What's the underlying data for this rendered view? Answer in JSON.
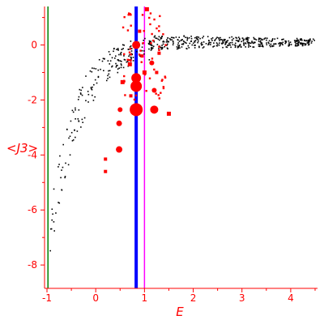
{
  "chart_data": {
    "type": "scatter",
    "xlabel": "E",
    "ylabel": "<J3>",
    "xlim": [
      -1.05,
      4.55
    ],
    "ylim": [
      -8.85,
      1.4
    ],
    "xticks": [
      "-1",
      "0",
      "1",
      "2",
      "3",
      "4"
    ],
    "yticks": [
      "0",
      "-2",
      "-4",
      "-6",
      "-8"
    ],
    "colors": {
      "axis": "#ff0000",
      "background_points": "#000000",
      "highlight_points": "#ff0000",
      "line_green": "#008000",
      "line_blue": "#0000ff",
      "line_magenta": "#ff00ff"
    },
    "vlines": [
      {
        "x": -0.98,
        "color": "#008000"
      },
      {
        "x": 0.83,
        "color": "#0000ff"
      },
      {
        "x": 1.0,
        "color": "#ff00ff"
      }
    ],
    "large_red_points": [
      {
        "x": 0.83,
        "y": -2.35,
        "size": 8
      },
      {
        "x": 0.83,
        "y": -1.5,
        "size": 7
      },
      {
        "x": 0.83,
        "y": -1.2,
        "size": 6
      },
      {
        "x": 0.83,
        "y": 0.0,
        "size": 5
      },
      {
        "x": 1.2,
        "y": -2.35,
        "size": 5
      },
      {
        "x": 0.48,
        "y": -3.8,
        "size": 4
      },
      {
        "x": 0.48,
        "y": -2.85,
        "size": 3.5
      },
      {
        "x": 0.5,
        "y": -2.35,
        "size": 3
      },
      {
        "x": 1.15,
        "y": -0.65,
        "size": 3
      },
      {
        "x": 1.2,
        "y": -1.65,
        "size": 3
      },
      {
        "x": 0.55,
        "y": -1.35,
        "size": 2.5
      },
      {
        "x": 1.0,
        "y": -1.0,
        "size": 2.5
      },
      {
        "x": 1.05,
        "y": 1.3,
        "size": 2.5
      },
      {
        "x": 0.7,
        "y": -0.7,
        "size": 2.5
      },
      {
        "x": 1.5,
        "y": -2.5,
        "size": 2.5
      },
      {
        "x": 1.3,
        "y": -0.3,
        "size": 2
      },
      {
        "x": 0.9,
        "y": 0.5,
        "size": 2
      },
      {
        "x": 0.95,
        "y": -0.4,
        "size": 2
      },
      {
        "x": 1.25,
        "y": -1.0,
        "size": 2
      },
      {
        "x": 0.2,
        "y": -4.15,
        "size": 2
      },
      {
        "x": 0.2,
        "y": -4.6,
        "size": 2
      },
      {
        "x": 0.72,
        "y": -1.85,
        "size": 2
      }
    ]
  }
}
